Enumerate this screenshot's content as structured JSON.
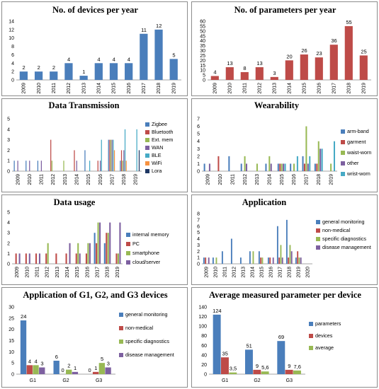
{
  "colors": {
    "blue": "#4a7ebb",
    "red": "#be4b48",
    "green": "#98b954",
    "purple": "#7d60a0",
    "cyan": "#46aac5",
    "orange": "#f69240",
    "navy": "#1f3864"
  },
  "chart_data": [
    {
      "id": "devices",
      "type": "bar",
      "title": "No. of devices per year",
      "categories": [
        "2009",
        "2010",
        "2011",
        "2012",
        "2013",
        "2014",
        "2015",
        "2016",
        "2017",
        "2018",
        "2019"
      ],
      "series": [
        {
          "values": [
            2,
            2,
            2,
            4,
            1,
            4,
            4,
            4,
            11,
            12,
            5
          ],
          "color": "blue"
        }
      ],
      "ylim": [
        0,
        14
      ],
      "yticks": [
        0,
        2,
        4,
        6,
        8,
        10,
        12,
        14
      ],
      "data_labels": true,
      "legend": "none"
    },
    {
      "id": "parameters",
      "type": "bar",
      "title": "No. of parameters per year",
      "categories": [
        "2009",
        "2010",
        "2011",
        "2012",
        "2013",
        "2014",
        "2015",
        "2016",
        "2017",
        "2018",
        "2019"
      ],
      "series": [
        {
          "values": [
            4,
            13,
            8,
            13,
            3,
            20,
            26,
            23,
            36,
            55,
            25
          ],
          "color": "red"
        }
      ],
      "ylim": [
        0,
        60
      ],
      "yticks": [
        0,
        5,
        10,
        15,
        20,
        25,
        30,
        35,
        40,
        45,
        50,
        55,
        60
      ],
      "data_labels": true,
      "legend": "none"
    },
    {
      "id": "transmission",
      "type": "bar",
      "title": "Data Transmission",
      "categories": [
        "2009",
        "2010",
        "2011",
        "2012",
        "2013",
        "2014",
        "2015",
        "2016",
        "2017",
        "2018",
        "2019"
      ],
      "series": [
        {
          "name": "Zigbee",
          "color": "blue",
          "values": [
            1,
            1,
            1,
            0,
            0,
            0,
            2,
            0,
            3,
            1,
            0
          ]
        },
        {
          "name": "Bluetooth",
          "color": "red",
          "values": [
            0,
            0,
            0,
            3,
            0,
            2,
            0,
            1,
            3,
            2,
            0
          ]
        },
        {
          "name": "Ext. mem",
          "color": "green",
          "values": [
            0,
            0,
            0,
            1,
            1,
            0,
            0,
            0,
            3,
            1,
            0
          ]
        },
        {
          "name": "WAN",
          "color": "purple",
          "values": [
            1,
            1,
            1,
            0,
            0,
            1,
            0,
            1,
            3,
            2,
            0
          ]
        },
        {
          "name": "BLE",
          "color": "cyan",
          "values": [
            0,
            0,
            0,
            0,
            0,
            0,
            1,
            3,
            3,
            4,
            4
          ]
        },
        {
          "name": "WiFi",
          "color": "orange",
          "values": [
            0,
            0,
            0,
            0,
            0,
            0,
            0,
            0,
            2,
            1,
            0
          ]
        },
        {
          "name": "Lora",
          "color": "navy",
          "values": [
            0,
            0,
            0,
            0,
            0,
            0,
            0,
            0,
            0,
            0,
            2
          ]
        }
      ],
      "ylim": [
        0,
        5
      ],
      "yticks": [
        0,
        1,
        2,
        3,
        4,
        5
      ],
      "data_labels": false,
      "legend": "right"
    },
    {
      "id": "wearability",
      "type": "bar",
      "title": "Wearability",
      "categories": [
        "2009",
        "2010",
        "2011",
        "2012",
        "2013",
        "2014",
        "2015",
        "2016",
        "2017",
        "2018",
        "2019"
      ],
      "series": [
        {
          "name": "arm-band",
          "color": "blue",
          "values": [
            1,
            0,
            2,
            1,
            0,
            1,
            1,
            1,
            2,
            1,
            0
          ]
        },
        {
          "name": "garment",
          "color": "red",
          "values": [
            0,
            2,
            0,
            0,
            0,
            0,
            1,
            0,
            1,
            1,
            0
          ]
        },
        {
          "name": "waist-worn",
          "color": "green",
          "values": [
            0,
            0,
            0,
            2,
            1,
            2,
            1,
            1,
            6,
            4,
            1
          ]
        },
        {
          "name": "other",
          "color": "purple",
          "values": [
            1,
            0,
            0,
            1,
            0,
            1,
            1,
            0,
            1,
            3,
            0
          ]
        },
        {
          "name": "wrist-worn",
          "color": "cyan",
          "values": [
            0,
            0,
            0,
            0,
            0,
            0,
            1,
            2,
            2,
            3,
            4
          ]
        }
      ],
      "ylim": [
        0,
        7
      ],
      "yticks": [
        0,
        1,
        2,
        3,
        4,
        5,
        6,
        7
      ],
      "data_labels": false,
      "legend": "right"
    },
    {
      "id": "usage",
      "type": "bar",
      "title": "Data usage",
      "categories": [
        "2009",
        "2010",
        "2011",
        "2012",
        "2013",
        "2014",
        "2015",
        "2016",
        "2017",
        "2018",
        "2019"
      ],
      "series": [
        {
          "name": "internal memory",
          "color": "blue",
          "values": [
            0,
            0,
            0,
            0,
            0,
            0,
            0,
            0,
            3,
            2,
            0
          ]
        },
        {
          "name": "PC",
          "color": "red",
          "values": [
            1,
            1,
            1,
            1,
            1,
            1,
            1,
            1,
            2,
            3,
            1
          ]
        },
        {
          "name": "smartphone",
          "color": "green",
          "values": [
            0,
            0,
            0,
            2,
            0,
            0,
            2,
            2,
            4,
            3,
            1
          ]
        },
        {
          "name": "cloud/server",
          "color": "purple",
          "values": [
            1,
            1,
            1,
            0,
            0,
            2,
            1,
            2,
            4,
            4,
            4
          ]
        }
      ],
      "ylim": [
        0,
        5
      ],
      "yticks": [
        0,
        1,
        2,
        3,
        4,
        5
      ],
      "data_labels": false,
      "legend": "right"
    },
    {
      "id": "application",
      "type": "bar",
      "title": "Application",
      "categories": [
        "2009",
        "2010",
        "2011",
        "2012",
        "2013",
        "2014",
        "2015",
        "2016",
        "2017",
        "2018",
        "2019",
        "2020"
      ],
      "series": [
        {
          "name": "general monitoring",
          "color": "blue",
          "values": [
            1,
            1,
            2,
            4,
            1,
            2,
            2,
            1,
            6,
            7,
            1,
            0
          ]
        },
        {
          "name": "non-medical",
          "color": "red",
          "values": [
            1,
            0,
            0,
            0,
            0,
            0,
            1,
            1,
            1,
            1,
            2,
            0
          ]
        },
        {
          "name": "specific diagnostics",
          "color": "green",
          "values": [
            0,
            1,
            0,
            0,
            0,
            2,
            1,
            0,
            3,
            3,
            1,
            0
          ]
        },
        {
          "name": "disease management",
          "color": "purple",
          "values": [
            1,
            0,
            0,
            0,
            0,
            0,
            0,
            1,
            1,
            2,
            1,
            0
          ]
        }
      ],
      "ylim": [
        0,
        8
      ],
      "yticks": [
        0,
        1,
        2,
        3,
        4,
        5,
        6,
        7,
        8
      ],
      "data_labels": false,
      "legend": "right"
    },
    {
      "id": "g123",
      "type": "bar",
      "title": "Application of G1, G2, and G3 devices",
      "categories": [
        "G1",
        "G2",
        "G3"
      ],
      "series": [
        {
          "name": "general monitoring",
          "color": "blue",
          "values": [
            24,
            6,
            0
          ]
        },
        {
          "name": "non-medical",
          "color": "red",
          "values": [
            4,
            0,
            1
          ]
        },
        {
          "name": "specific diagnostics",
          "color": "green",
          "values": [
            4,
            2,
            5
          ]
        },
        {
          "name": "disease management",
          "color": "purple",
          "values": [
            3,
            1,
            3
          ]
        }
      ],
      "ylim": [
        0,
        30
      ],
      "yticks": [
        0,
        5,
        10,
        15,
        20,
        25,
        30
      ],
      "data_labels": true,
      "legend": "right"
    },
    {
      "id": "avgparam",
      "type": "bar",
      "title": "Average measured parameter per device",
      "categories": [
        "G1",
        "G2",
        "G3"
      ],
      "series": [
        {
          "name": "parameters",
          "color": "blue",
          "values": [
            124,
            51,
            69
          ],
          "labels": [
            "124",
            "51",
            "69"
          ]
        },
        {
          "name": "devices",
          "color": "red",
          "values": [
            35,
            9,
            9
          ],
          "labels": [
            "35",
            "9",
            "9"
          ]
        },
        {
          "name": "average",
          "color": "green",
          "values": [
            3.5,
            5.6,
            7.6
          ],
          "labels": [
            "3,5",
            "5,6",
            "7,6"
          ]
        }
      ],
      "ylim": [
        0,
        140
      ],
      "yticks": [
        0,
        20,
        40,
        60,
        80,
        100,
        120,
        140
      ],
      "data_labels": true,
      "legend": "right"
    }
  ]
}
